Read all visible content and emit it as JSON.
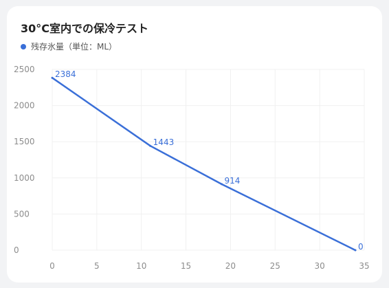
{
  "chart_data": {
    "type": "line",
    "title": "30°C室内での保冷テスト",
    "xlabel": "",
    "ylabel": "",
    "xlim": [
      0,
      35
    ],
    "ylim": [
      0,
      2500
    ],
    "xticks": [
      0,
      5,
      10,
      15,
      20,
      25,
      30,
      35
    ],
    "yticks": [
      0,
      500,
      1000,
      1500,
      2000,
      2500
    ],
    "grid": true,
    "legend": "top-left",
    "series": [
      {
        "name": "残存氷量（単位：ML）",
        "color": "#3a6fd8",
        "points": [
          {
            "x": 0,
            "y": 2384
          },
          {
            "x": 11,
            "y": 1443
          },
          {
            "x": 19,
            "y": 914
          },
          {
            "x": 34,
            "y": 0
          }
        ]
      }
    ]
  }
}
